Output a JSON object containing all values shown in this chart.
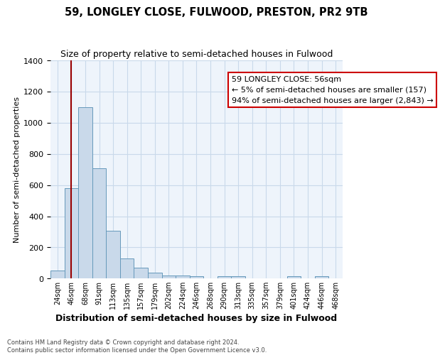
{
  "title": "59, LONGLEY CLOSE, FULWOOD, PRESTON, PR2 9TB",
  "subtitle": "Size of property relative to semi-detached houses in Fulwood",
  "xlabel": "Distribution of semi-detached houses by size in Fulwood",
  "ylabel": "Number of semi-detached properties",
  "bin_labels": [
    "24sqm",
    "46sqm",
    "68sqm",
    "91sqm",
    "113sqm",
    "135sqm",
    "157sqm",
    "179sqm",
    "202sqm",
    "224sqm",
    "246sqm",
    "268sqm",
    "290sqm",
    "313sqm",
    "335sqm",
    "357sqm",
    "379sqm",
    "401sqm",
    "424sqm",
    "446sqm",
    "468sqm"
  ],
  "bar_values": [
    50,
    580,
    1100,
    710,
    305,
    130,
    72,
    37,
    20,
    20,
    15,
    0,
    15,
    15,
    0,
    0,
    0,
    15,
    0,
    15,
    0
  ],
  "bar_color": "#c9d9ea",
  "bar_edge_color": "#6699bb",
  "grid_color": "#c9d9ea",
  "bg_color": "#eef4fb",
  "vline_color": "#990000",
  "vline_bar_index": 1,
  "ylim": [
    0,
    1400
  ],
  "yticks": [
    0,
    200,
    400,
    600,
    800,
    1000,
    1200,
    1400
  ],
  "annotation_title": "59 LONGLEY CLOSE: 56sqm",
  "annotation_line1": "← 5% of semi-detached houses are smaller (157)",
  "annotation_line2": "94% of semi-detached houses are larger (2,843) →",
  "annotation_box_facecolor": "#ffffff",
  "annotation_box_edgecolor": "#cc0000",
  "footer_line1": "Contains HM Land Registry data © Crown copyright and database right 2024.",
  "footer_line2": "Contains public sector information licensed under the Open Government Licence v3.0."
}
